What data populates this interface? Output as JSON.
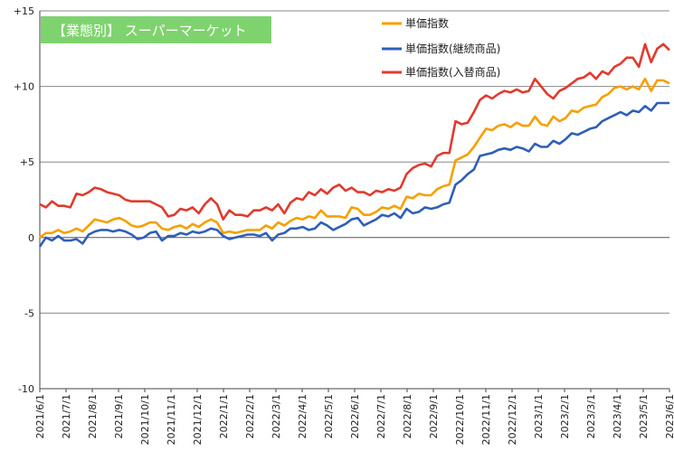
{
  "chart_data": {
    "type": "line",
    "title": "【業態別】 スーパーマーケット",
    "title_box_color": "#7fd36f",
    "ylim": [
      -10,
      15
    ],
    "yticks": [
      15,
      10,
      5,
      0,
      -5,
      -10
    ],
    "ytick_labels": [
      "+15",
      "+10",
      "+5",
      "0",
      "-5",
      "-10"
    ],
    "x_start": "2021-06",
    "x_end": "2023-06",
    "xtick_labels": [
      "2021/6/1",
      "2021/7/1",
      "2021/8/1",
      "2021/9/1",
      "2021/10/1",
      "2021/11/1",
      "2021/12/1",
      "2022/1/1",
      "2022/2/1",
      "2022/3/1",
      "2022/4/1",
      "2022/5/1",
      "2022/6/1",
      "2022/7/1",
      "2022/8/1",
      "2022/9/1",
      "2022/10/1",
      "2022/11/1",
      "2022/12/1",
      "2023/1/1",
      "2023/2/1",
      "2023/3/1",
      "2023/4/1",
      "2023/5/1",
      "2023/6/1"
    ],
    "grid": "horizontal",
    "legend_position": "top-right",
    "series": [
      {
        "name": "単価指数",
        "color": "#f5a000",
        "values": [
          0.0,
          0.3,
          0.3,
          0.5,
          0.3,
          0.4,
          0.6,
          0.4,
          0.8,
          1.2,
          1.1,
          1.0,
          1.2,
          1.3,
          1.1,
          0.8,
          0.7,
          0.8,
          1.0,
          1.0,
          0.6,
          0.5,
          0.7,
          0.8,
          0.6,
          0.9,
          0.7,
          1.0,
          1.2,
          1.0,
          0.3,
          0.4,
          0.3,
          0.4,
          0.5,
          0.5,
          0.5,
          0.8,
          0.6,
          1.0,
          0.8,
          1.1,
          1.3,
          1.2,
          1.4,
          1.3,
          1.8,
          1.4,
          1.4,
          1.4,
          1.3,
          2.0,
          1.9,
          1.5,
          1.5,
          1.7,
          2.0,
          1.9,
          2.1,
          1.9,
          2.7,
          2.6,
          2.9,
          2.8,
          2.8,
          3.2,
          3.4,
          3.5,
          5.1,
          5.3,
          5.5,
          6.0,
          6.6,
          7.2,
          7.1,
          7.4,
          7.5,
          7.3,
          7.6,
          7.4,
          7.4,
          8.0,
          7.5,
          7.4,
          8.0,
          7.7,
          7.9,
          8.4,
          8.3,
          8.6,
          8.7,
          8.8,
          9.3,
          9.5,
          9.9,
          10.0,
          9.8,
          10.0,
          9.8,
          10.5,
          9.7,
          10.4,
          10.4,
          10.2
        ]
      },
      {
        "name": "単価指数(継続商品)",
        "color": "#2f5fb7",
        "values": [
          -0.6,
          0.0,
          -0.2,
          0.1,
          -0.2,
          -0.2,
          -0.1,
          -0.4,
          0.2,
          0.4,
          0.5,
          0.5,
          0.4,
          0.5,
          0.4,
          0.2,
          -0.1,
          0.0,
          0.3,
          0.4,
          -0.2,
          0.1,
          0.1,
          0.3,
          0.2,
          0.4,
          0.3,
          0.4,
          0.6,
          0.5,
          0.1,
          -0.1,
          0.0,
          0.1,
          0.2,
          0.2,
          0.1,
          0.3,
          -0.2,
          0.2,
          0.3,
          0.6,
          0.6,
          0.7,
          0.5,
          0.6,
          1.0,
          0.8,
          0.5,
          0.7,
          0.9,
          1.2,
          1.3,
          0.8,
          1.0,
          1.2,
          1.5,
          1.4,
          1.6,
          1.3,
          1.9,
          1.6,
          1.7,
          2.0,
          1.9,
          2.0,
          2.2,
          2.3,
          3.5,
          3.8,
          4.2,
          4.5,
          5.4,
          5.5,
          5.6,
          5.8,
          5.9,
          5.8,
          6.0,
          5.9,
          5.7,
          6.2,
          6.0,
          6.0,
          6.4,
          6.2,
          6.5,
          6.9,
          6.8,
          7.0,
          7.2,
          7.3,
          7.7,
          7.9,
          8.1,
          8.3,
          8.1,
          8.4,
          8.3,
          8.7,
          8.4,
          8.9,
          8.9,
          8.9
        ]
      },
      {
        "name": "単価指数(入替商品)",
        "color": "#e03a2f",
        "values": [
          2.2,
          2.0,
          2.4,
          2.1,
          2.1,
          2.0,
          2.9,
          2.8,
          3.0,
          3.3,
          3.2,
          3.0,
          2.9,
          2.8,
          2.5,
          2.4,
          2.4,
          2.4,
          2.4,
          2.2,
          2.0,
          1.4,
          1.5,
          1.9,
          1.8,
          2.0,
          1.6,
          2.2,
          2.6,
          2.2,
          1.2,
          1.8,
          1.5,
          1.5,
          1.4,
          1.8,
          1.8,
          2.0,
          1.8,
          2.2,
          1.6,
          2.3,
          2.6,
          2.5,
          3.0,
          2.8,
          3.2,
          2.9,
          3.3,
          3.5,
          3.1,
          3.3,
          3.0,
          3.0,
          2.8,
          3.1,
          3.0,
          3.2,
          3.1,
          3.3,
          4.2,
          4.6,
          4.8,
          4.9,
          4.7,
          5.4,
          5.6,
          5.6,
          7.7,
          7.5,
          7.6,
          8.3,
          9.1,
          9.4,
          9.2,
          9.5,
          9.7,
          9.6,
          9.8,
          9.6,
          9.7,
          10.5,
          10.0,
          9.5,
          9.2,
          9.7,
          9.9,
          10.2,
          10.5,
          10.6,
          10.9,
          10.5,
          11.0,
          10.8,
          11.3,
          11.5,
          11.9,
          11.9,
          11.3,
          12.8,
          11.6,
          12.5,
          12.8,
          12.4
        ]
      }
    ]
  }
}
